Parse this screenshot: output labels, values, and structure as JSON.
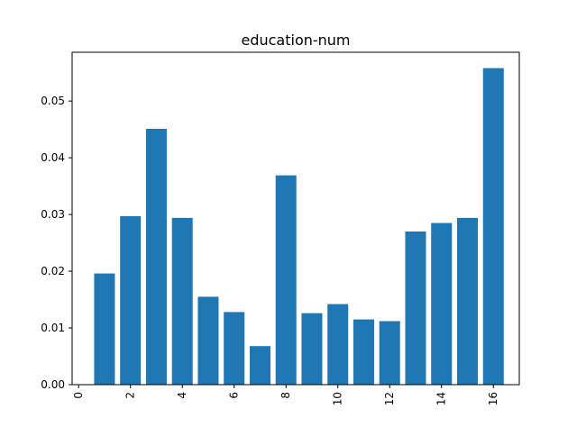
{
  "chart_data": {
    "type": "bar",
    "title": "education-num",
    "xlabel": "",
    "ylabel": "",
    "x": [
      1,
      2,
      3,
      4,
      5,
      6,
      7,
      8,
      9,
      10,
      11,
      12,
      13,
      14,
      15,
      16
    ],
    "values": [
      0.0196,
      0.0297,
      0.0451,
      0.0294,
      0.0155,
      0.0128,
      0.0068,
      0.0369,
      0.0126,
      0.0142,
      0.0115,
      0.0112,
      0.027,
      0.0285,
      0.0294,
      0.0558
    ],
    "xlim": [
      -0.25,
      17.0
    ],
    "ylim": [
      0,
      0.0586
    ],
    "xticks": [
      0,
      2,
      4,
      6,
      8,
      10,
      12,
      14,
      16
    ],
    "xtick_labels": [
      "0",
      "2",
      "4",
      "6",
      "8",
      "10",
      "12",
      "14",
      "16"
    ],
    "yticks": [
      0.0,
      0.01,
      0.02,
      0.03,
      0.04,
      0.05
    ],
    "ytick_labels": [
      "0.00",
      "0.01",
      "0.02",
      "0.03",
      "0.04",
      "0.05"
    ],
    "xtick_rotation": "vertical",
    "bar_color": "#1f77b4",
    "grid": false,
    "legend": "none"
  }
}
